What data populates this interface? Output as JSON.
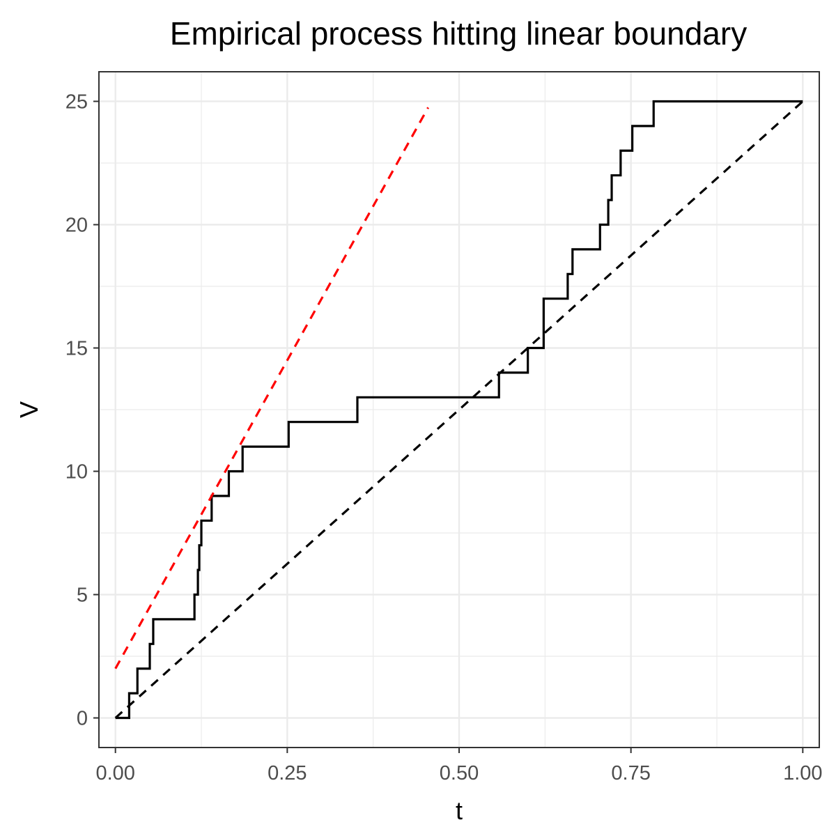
{
  "chart_data": {
    "type": "line",
    "title": "Empirical process hitting linear boundary",
    "xlabel": "t",
    "ylabel": "V",
    "xlim": [
      -0.024,
      1.024
    ],
    "ylim": [
      -1.2,
      26.2
    ],
    "x_ticks": [
      0.0,
      0.25,
      0.5,
      0.75,
      1.0
    ],
    "x_tick_labels": [
      "0.00",
      "0.25",
      "0.50",
      "0.75",
      "1.00"
    ],
    "y_ticks": [
      0,
      5,
      10,
      15,
      20,
      25
    ],
    "y_tick_labels": [
      "0",
      "5",
      "10",
      "15",
      "20",
      "25"
    ],
    "grid": true,
    "colors": {
      "step": "#000000",
      "boundary": "#ff0000",
      "diagonal": "#000000",
      "grid": "#ebebeb",
      "panel_border": "#333333"
    },
    "series": [
      {
        "style": "step",
        "color": "#000000",
        "x": [
          0.0,
          0.02,
          0.032,
          0.05,
          0.055,
          0.115,
          0.12,
          0.122,
          0.125,
          0.14,
          0.165,
          0.185,
          0.252,
          0.352,
          0.555,
          0.558,
          0.6,
          0.623,
          0.658,
          0.665,
          0.705,
          0.717,
          0.722,
          0.735,
          0.752,
          0.783,
          1.0
        ],
        "y": [
          0,
          1,
          2,
          3,
          4,
          5,
          6,
          7,
          8,
          9,
          10,
          11,
          12,
          13,
          13,
          14,
          15,
          17,
          18,
          19,
          20,
          21,
          22,
          23,
          24,
          25,
          25
        ]
      },
      {
        "style": "dashed",
        "color": "#ff0000",
        "x": [
          0.0,
          0.455
        ],
        "y": [
          2.0,
          24.75
        ]
      },
      {
        "style": "dashed",
        "color": "#000000",
        "x": [
          0.0,
          1.0
        ],
        "y": [
          0.0,
          25.0
        ]
      }
    ]
  }
}
